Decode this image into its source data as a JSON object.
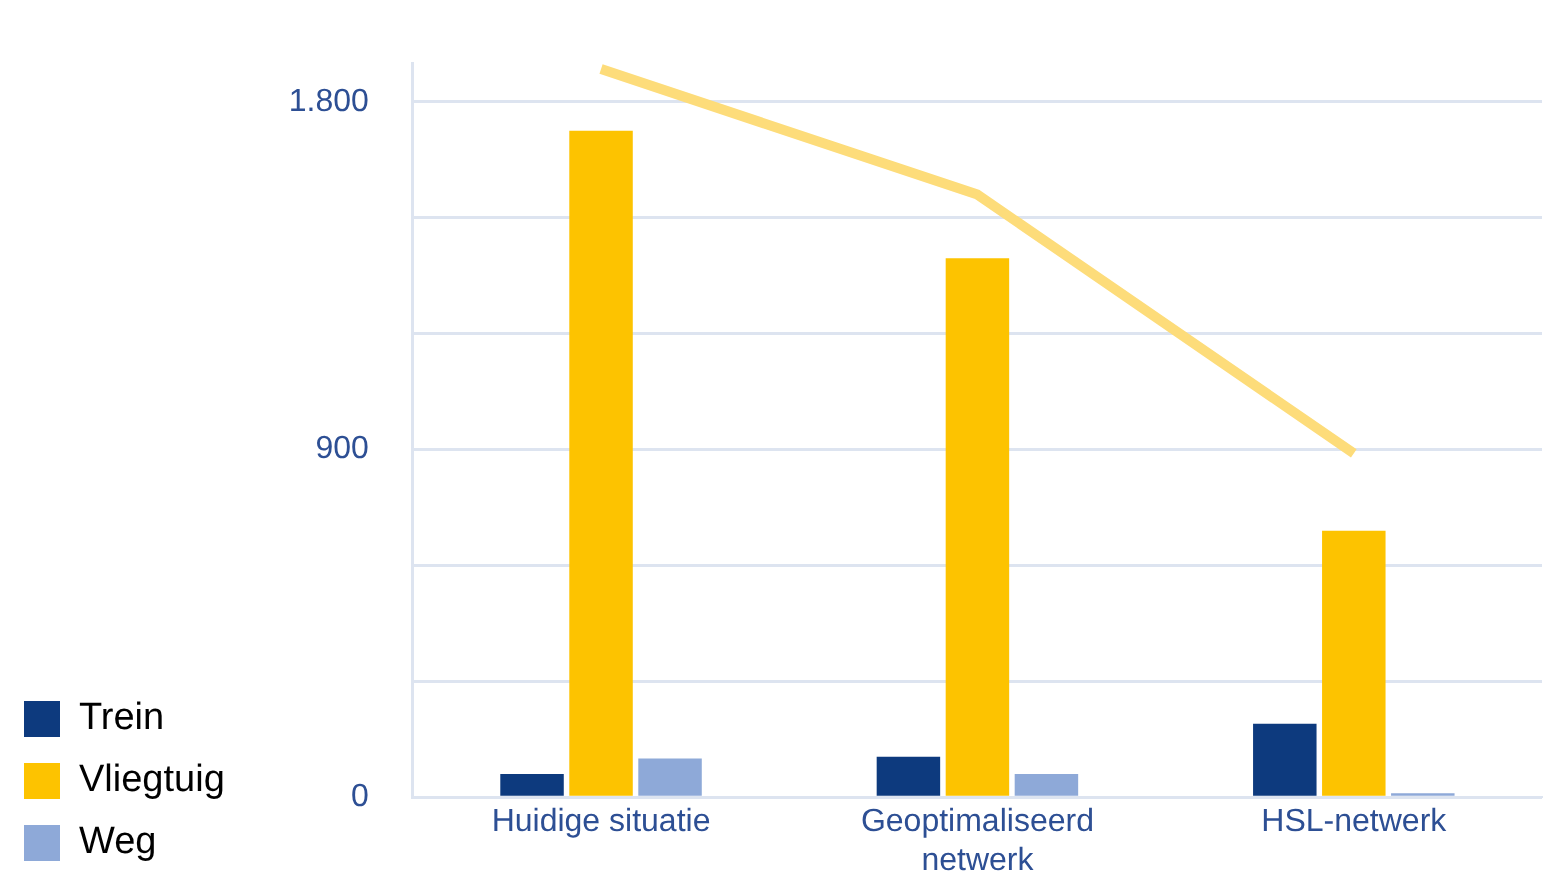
{
  "chart_data": {
    "type": "bar",
    "categories": [
      "Huidige situatie",
      "Geoptimaliseerd netwerk",
      "HSL-netwerk"
    ],
    "series": [
      {
        "name": "Trein",
        "color": "#0d3a7e",
        "values": [
          60,
          105,
          190
        ]
      },
      {
        "name": "Vliegtuig",
        "color": "#fdc300",
        "values": [
          1725,
          1395,
          690
        ]
      },
      {
        "name": "Weg",
        "color": "#8ea9d8",
        "values": [
          100,
          60,
          10
        ]
      },
      {
        "type": "line",
        "color": "#fddc7a",
        "values": [
          1885,
          1560,
          890
        ]
      }
    ],
    "ylim": [
      0,
      1900
    ],
    "yticks": [
      0,
      {
        "value": 300,
        "label": null
      },
      {
        "value": 600,
        "label": null
      },
      900,
      {
        "value": 1200,
        "label": null
      },
      {
        "value": 1500,
        "label": null
      },
      {
        "value": 1800,
        "label": "1.800"
      }
    ],
    "grid": "y",
    "legend": "bottom left",
    "marker": "none"
  }
}
